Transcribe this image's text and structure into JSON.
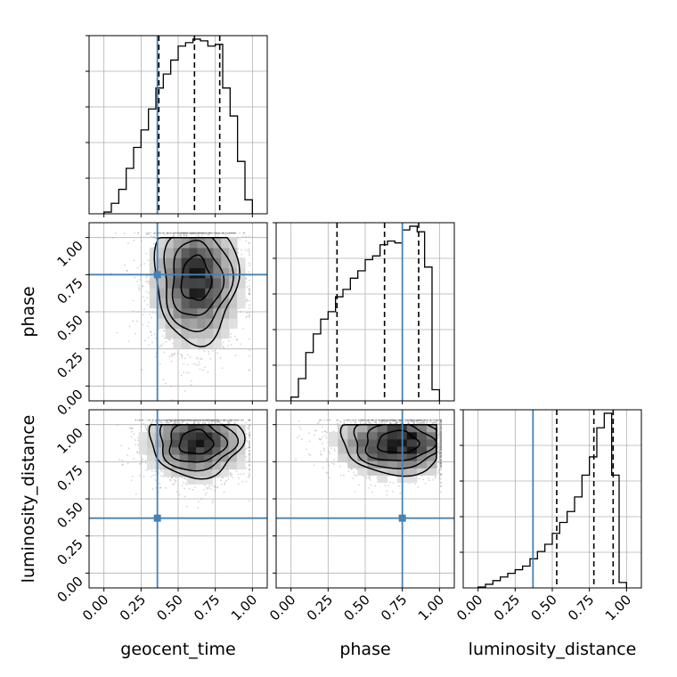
{
  "colors": {
    "truth": "#4682b4",
    "contour": "#000000",
    "quantile_line": "#000000",
    "grid": "#b0b0b0",
    "scatter": "#888888"
  },
  "chart_data": {
    "type": "corner",
    "parameters": [
      "geocent_time",
      "phase",
      "luminosity_distance"
    ],
    "axis_range": [
      -0.1,
      1.1
    ],
    "tick_values": [
      0.0,
      0.25,
      0.5,
      0.75,
      1.0
    ],
    "tick_labels": [
      "0.00",
      "0.25",
      "0.50",
      "0.75",
      "1.00"
    ],
    "grid": true,
    "truths": [
      0.36,
      0.75,
      0.37
    ],
    "quantiles": {
      "geocent_time": [
        0.37,
        0.61,
        0.78
      ],
      "phase": [
        0.31,
        0.63,
        0.86
      ],
      "luminosity_distance": [
        0.53,
        0.78,
        0.91
      ]
    },
    "histograms": {
      "geocent_time": {
        "bin_edges": [
          0.0,
          0.05,
          0.1,
          0.15,
          0.2,
          0.25,
          0.3,
          0.35,
          0.4,
          0.45,
          0.5,
          0.55,
          0.6,
          0.65,
          0.7,
          0.75,
          0.8,
          0.85,
          0.9,
          0.95,
          1.0
        ],
        "counts": [
          0.01,
          0.06,
          0.14,
          0.26,
          0.38,
          0.48,
          0.6,
          0.72,
          0.8,
          0.88,
          0.96,
          0.98,
          1.0,
          0.99,
          0.96,
          0.97,
          0.72,
          0.56,
          0.3,
          0.08
        ]
      },
      "phase": {
        "bin_edges": [
          0.0,
          0.05,
          0.1,
          0.15,
          0.2,
          0.25,
          0.3,
          0.35,
          0.4,
          0.45,
          0.5,
          0.55,
          0.6,
          0.65,
          0.7,
          0.75,
          0.8,
          0.85,
          0.9,
          0.95,
          1.0
        ],
        "counts": [
          0.02,
          0.12,
          0.26,
          0.36,
          0.44,
          0.48,
          0.56,
          0.6,
          0.66,
          0.7,
          0.76,
          0.78,
          0.84,
          0.86,
          0.85,
          0.92,
          0.94,
          0.91,
          0.72,
          0.06
        ]
      },
      "luminosity_distance": {
        "bin_edges": [
          0.0,
          0.05,
          0.1,
          0.15,
          0.2,
          0.25,
          0.3,
          0.35,
          0.4,
          0.45,
          0.5,
          0.55,
          0.6,
          0.65,
          0.7,
          0.75,
          0.8,
          0.85,
          0.9,
          0.95,
          1.0
        ],
        "counts": [
          0.005,
          0.02,
          0.04,
          0.06,
          0.08,
          0.1,
          0.12,
          0.16,
          0.2,
          0.24,
          0.3,
          0.36,
          0.42,
          0.5,
          0.62,
          0.72,
          0.88,
          0.96,
          0.62,
          0.03
        ]
      }
    },
    "density_2d": {
      "geocent_time_vs_phase": {
        "x_center": 0.62,
        "y_center": 0.72,
        "x_spread": 0.16,
        "y_spread": 0.24,
        "x_range": [
          0.2,
          0.95
        ],
        "y_range": [
          0.05,
          1.0
        ]
      },
      "geocent_time_vs_luminosity_distance": {
        "x_center": 0.62,
        "y_center": 0.88,
        "x_spread": 0.18,
        "y_spread": 0.13,
        "x_range": [
          0.18,
          0.95
        ],
        "y_range": [
          0.3,
          1.0
        ]
      },
      "phase_vs_luminosity_distance": {
        "x_center": 0.72,
        "y_center": 0.88,
        "x_spread": 0.22,
        "y_spread": 0.12,
        "x_range": [
          0.05,
          0.98
        ],
        "y_range": [
          0.32,
          1.0
        ]
      }
    }
  }
}
